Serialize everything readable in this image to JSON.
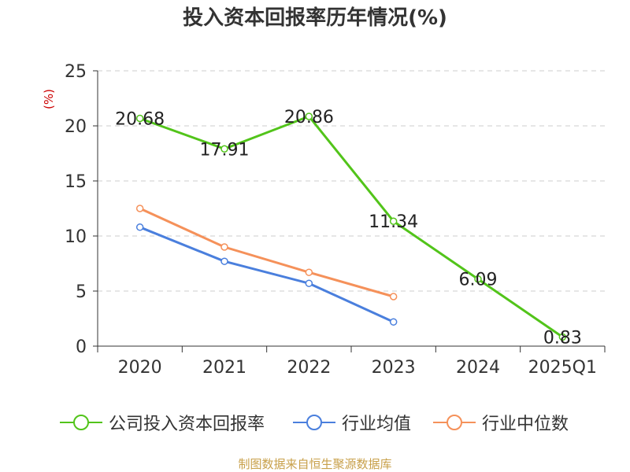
{
  "title": "投入资本回报率历年情况(%)",
  "source": "制图数据来自恒生聚源数据库",
  "chart_data": {
    "type": "line",
    "title": "投入资本回报率历年情况(%)",
    "ylabel": "(%)",
    "categories": [
      "2020",
      "2021",
      "2022",
      "2023",
      "2024",
      "2025Q1"
    ],
    "ylim": [
      0,
      25
    ],
    "yticks": [
      0,
      5,
      10,
      15,
      20,
      25
    ],
    "grid": true,
    "legend_position": "bottom",
    "series": [
      {
        "name": "公司投入资本回报率",
        "color": "#52c41a",
        "labeled": true,
        "values": [
          20.68,
          17.91,
          20.86,
          11.34,
          6.09,
          0.83
        ],
        "labels": [
          "20.68",
          "17.91",
          "20.86",
          "11.34",
          "6.09",
          "0.83"
        ]
      },
      {
        "name": "行业均值",
        "color": "#4a7fdd",
        "labeled": false,
        "values": [
          10.8,
          7.7,
          5.7,
          2.2,
          null,
          null
        ]
      },
      {
        "name": "行业中位数",
        "color": "#f5915a",
        "labeled": false,
        "values": [
          12.5,
          9.0,
          6.7,
          4.5,
          null,
          null
        ]
      }
    ]
  }
}
